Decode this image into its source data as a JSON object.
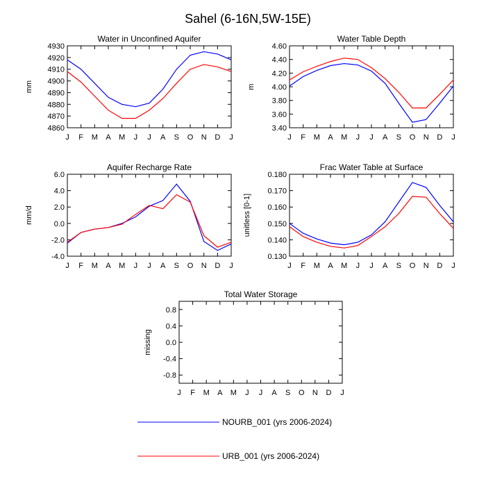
{
  "title": "Sahel (6-16N,5W-15E)",
  "colors": {
    "nourb": "#0000ff",
    "urb": "#ff0000"
  },
  "legend": [
    {
      "name": "NOURB_001 (yrs 2006-2024)",
      "color": "#0000ff"
    },
    {
      "name": "URB_001 (yrs 2006-2024)",
      "color": "#ff0000"
    }
  ],
  "chart_data": [
    {
      "type": "line",
      "title": "Water in Unconfined Aquifer",
      "ylabel": "mm",
      "categories": [
        "J",
        "F",
        "M",
        "A",
        "M",
        "J",
        "J",
        "A",
        "S",
        "O",
        "N",
        "D",
        "J"
      ],
      "ylim": [
        4860,
        4930
      ],
      "yticks": [
        4860,
        4870,
        4880,
        4890,
        4900,
        4910,
        4920,
        4930
      ],
      "ytick_labels": [
        "4860",
        "4870",
        "4880",
        "4890",
        "4900",
        "4910",
        "4920",
        "4930"
      ],
      "series": [
        {
          "name": "NOURB_001 (yrs 2006-2024)",
          "color": "#0000ff",
          "values": [
            4918,
            4910,
            4898,
            4886,
            4880,
            4878,
            4881,
            4893,
            4910,
            4922,
            4925,
            4923,
            4918
          ]
        },
        {
          "name": "URB_001 (yrs 2006-2024)",
          "color": "#ff0000",
          "values": [
            4908,
            4899,
            4887,
            4875,
            4868,
            4868,
            4875,
            4885,
            4898,
            4910,
            4914,
            4912,
            4908
          ]
        }
      ]
    },
    {
      "type": "line",
      "title": "Water Table Depth",
      "ylabel": "m",
      "categories": [
        "J",
        "F",
        "M",
        "A",
        "M",
        "J",
        "J",
        "A",
        "S",
        "O",
        "N",
        "D",
        "J"
      ],
      "ylim": [
        3.4,
        4.6
      ],
      "yticks": [
        3.4,
        3.6,
        3.8,
        4.0,
        4.2,
        4.4,
        4.6
      ],
      "ytick_labels": [
        "3.40",
        "3.60",
        "3.80",
        "4.00",
        "4.20",
        "4.40",
        "4.60"
      ],
      "series": [
        {
          "name": "NOURB_001 (yrs 2006-2024)",
          "color": "#0000ff",
          "values": [
            4.01,
            4.15,
            4.24,
            4.31,
            4.34,
            4.32,
            4.23,
            4.05,
            3.76,
            3.48,
            3.52,
            3.76,
            4.01
          ]
        },
        {
          "name": "URB_001 (yrs 2006-2024)",
          "color": "#ff0000",
          "values": [
            4.1,
            4.22,
            4.3,
            4.37,
            4.42,
            4.4,
            4.28,
            4.12,
            3.92,
            3.69,
            3.69,
            3.89,
            4.1
          ]
        }
      ]
    },
    {
      "type": "line",
      "title": "Aquifer Recharge Rate",
      "ylabel": "mm/d",
      "categories": [
        "J",
        "F",
        "M",
        "A",
        "M",
        "J",
        "J",
        "A",
        "S",
        "O",
        "N",
        "D",
        "J"
      ],
      "ylim": [
        -4,
        6
      ],
      "yticks": [
        -4,
        -2,
        0,
        2,
        4,
        6
      ],
      "ytick_labels": [
        "-4.0",
        "-2.0",
        "0.0",
        "2.0",
        "4.0",
        "6.0"
      ],
      "series": [
        {
          "name": "NOURB_001 (yrs 2006-2024)",
          "color": "#0000ff",
          "values": [
            -2.4,
            -1.1,
            -0.7,
            -0.5,
            0.0,
            0.8,
            2.1,
            2.8,
            4.8,
            2.7,
            -2.2,
            -3.3,
            -2.5
          ]
        },
        {
          "name": "URB_001 (yrs 2006-2024)",
          "color": "#ff0000",
          "values": [
            -2.3,
            -1.1,
            -0.7,
            -0.5,
            -0.1,
            1.1,
            2.2,
            1.8,
            3.5,
            2.6,
            -1.5,
            -2.9,
            -2.3
          ]
        }
      ]
    },
    {
      "type": "line",
      "title": "Frac Water Table at Surface",
      "ylabel": "unitless [0-1]",
      "categories": [
        "J",
        "F",
        "M",
        "A",
        "M",
        "J",
        "J",
        "A",
        "S",
        "O",
        "N",
        "D",
        "J"
      ],
      "ylim": [
        0.13,
        0.18
      ],
      "yticks": [
        0.13,
        0.14,
        0.15,
        0.16,
        0.17,
        0.18
      ],
      "ytick_labels": [
        "0.130",
        "0.140",
        "0.150",
        "0.160",
        "0.170",
        "0.180"
      ],
      "series": [
        {
          "name": "NOURB_001 (yrs 2006-2024)",
          "color": "#0000ff",
          "values": [
            0.15,
            0.144,
            0.1405,
            0.138,
            0.137,
            0.1385,
            0.143,
            0.151,
            0.163,
            0.175,
            0.172,
            0.161,
            0.151
          ]
        },
        {
          "name": "URB_001 (yrs 2006-2024)",
          "color": "#ff0000",
          "values": [
            0.148,
            0.142,
            0.1385,
            0.136,
            0.135,
            0.1365,
            0.142,
            0.148,
            0.156,
            0.1665,
            0.166,
            0.156,
            0.147
          ]
        }
      ]
    },
    {
      "type": "line",
      "title": "Total Water Storage",
      "ylabel": "missing",
      "categories": [
        "J",
        "F",
        "M",
        "A",
        "M",
        "J",
        "J",
        "A",
        "S",
        "O",
        "N",
        "D",
        "J"
      ],
      "ylim": [
        -1,
        1
      ],
      "yticks": [
        -0.8,
        -0.4,
        0.0,
        0.4,
        0.8
      ],
      "ytick_labels": [
        "-0.8",
        "-0.4",
        "0.0",
        "0.4",
        "0.8"
      ],
      "series": []
    }
  ]
}
